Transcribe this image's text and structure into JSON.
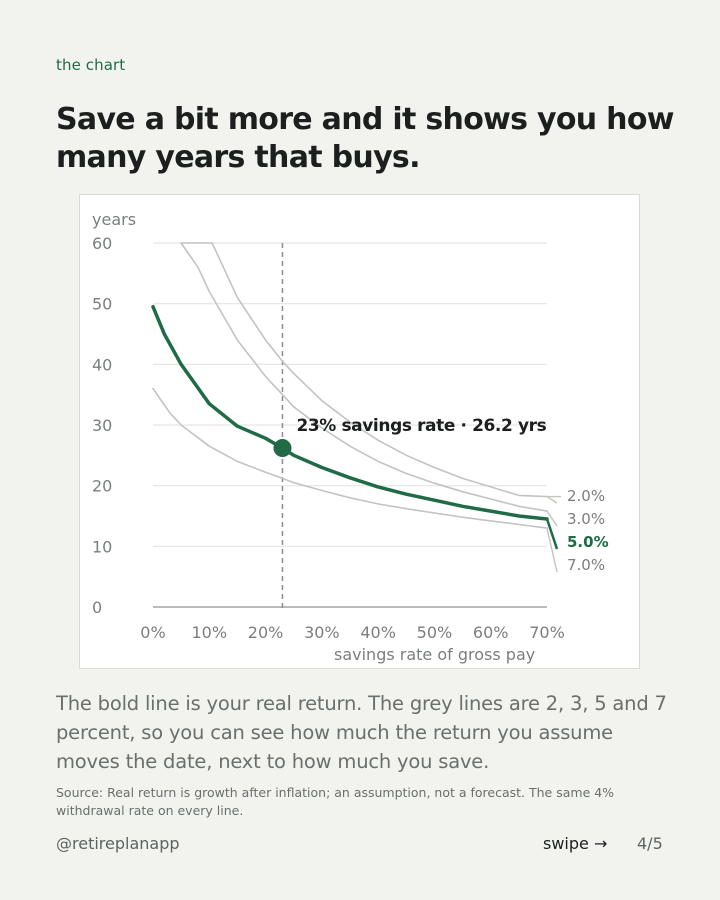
{
  "kicker": "the chart",
  "headline": "Save a bit more and it shows you how many years that buys.",
  "chart_data": {
    "type": "line",
    "ylabel": "years",
    "xlabel": "savings rate of gross pay",
    "x_ticks": [
      "0%",
      "10%",
      "20%",
      "30%",
      "40%",
      "50%",
      "60%",
      "70%"
    ],
    "y_ticks": [
      "0",
      "10",
      "20",
      "30",
      "40",
      "50",
      "60"
    ],
    "xlim": [
      0,
      70
    ],
    "ylim": [
      0,
      60
    ],
    "grid": true,
    "series": [
      {
        "name": "2.0%",
        "highlight": false,
        "color": "#c2c4c0",
        "points": [
          [
            5,
            60
          ],
          [
            10.5,
            60
          ],
          [
            13,
            55
          ],
          [
            15,
            51
          ],
          [
            20,
            44
          ],
          [
            23,
            40.5
          ],
          [
            25,
            38.5
          ],
          [
            30,
            34
          ],
          [
            35,
            30.5
          ],
          [
            40,
            27.5
          ],
          [
            45,
            25
          ],
          [
            50,
            23
          ],
          [
            55,
            21.2
          ],
          [
            60,
            19.8
          ],
          [
            65,
            18.4
          ],
          [
            70,
            18.2
          ]
        ]
      },
      {
        "name": "3.0%",
        "highlight": false,
        "color": "#c2c4c0",
        "points": [
          [
            5,
            60
          ],
          [
            8,
            56
          ],
          [
            10,
            52
          ],
          [
            15,
            44
          ],
          [
            20,
            38
          ],
          [
            23,
            35
          ],
          [
            25,
            33
          ],
          [
            30,
            29.5
          ],
          [
            35,
            26.5
          ],
          [
            40,
            24
          ],
          [
            45,
            22
          ],
          [
            50,
            20.4
          ],
          [
            55,
            19
          ],
          [
            60,
            17.8
          ],
          [
            65,
            16.6
          ],
          [
            70,
            15.8
          ]
        ]
      },
      {
        "name": "5.0%",
        "highlight": true,
        "color": "#1f6b45",
        "points": [
          [
            0,
            49.5
          ],
          [
            2,
            45
          ],
          [
            5,
            40
          ],
          [
            10,
            33.5
          ],
          [
            15,
            29.8
          ],
          [
            20,
            27.8
          ],
          [
            23,
            26.2
          ],
          [
            25,
            25
          ],
          [
            30,
            23
          ],
          [
            35,
            21.3
          ],
          [
            40,
            19.8
          ],
          [
            45,
            18.6
          ],
          [
            50,
            17.6
          ],
          [
            55,
            16.6
          ],
          [
            60,
            15.8
          ],
          [
            65,
            15
          ],
          [
            70,
            14.5
          ]
        ]
      },
      {
        "name": "7.0%",
        "highlight": false,
        "color": "#c2c4c0",
        "points": [
          [
            0,
            36
          ],
          [
            3,
            32
          ],
          [
            5,
            30
          ],
          [
            10,
            26.5
          ],
          [
            15,
            24
          ],
          [
            20,
            22.2
          ],
          [
            23,
            21.2
          ],
          [
            25,
            20.5
          ],
          [
            30,
            19.2
          ],
          [
            35,
            18
          ],
          [
            40,
            17
          ],
          [
            45,
            16.2
          ],
          [
            50,
            15.5
          ],
          [
            55,
            14.8
          ],
          [
            60,
            14.2
          ],
          [
            65,
            13.6
          ],
          [
            70,
            13
          ]
        ]
      }
    ],
    "annotation": {
      "x": 23,
      "y": 26.2,
      "text": "23% savings rate · 26.2 yrs"
    }
  },
  "body_text": "The bold line is your real return. The grey lines are 2, 3, 5 and 7 percent, so you can see how much the return you assume moves the date, next to how much you save.",
  "source": "Source: Real return is growth after inflation; an assumption, not a forecast. The same 4% withdrawal rate on every line.",
  "handle": "@retireplanapp",
  "swipe": "swipe →",
  "page_count": "4/5"
}
